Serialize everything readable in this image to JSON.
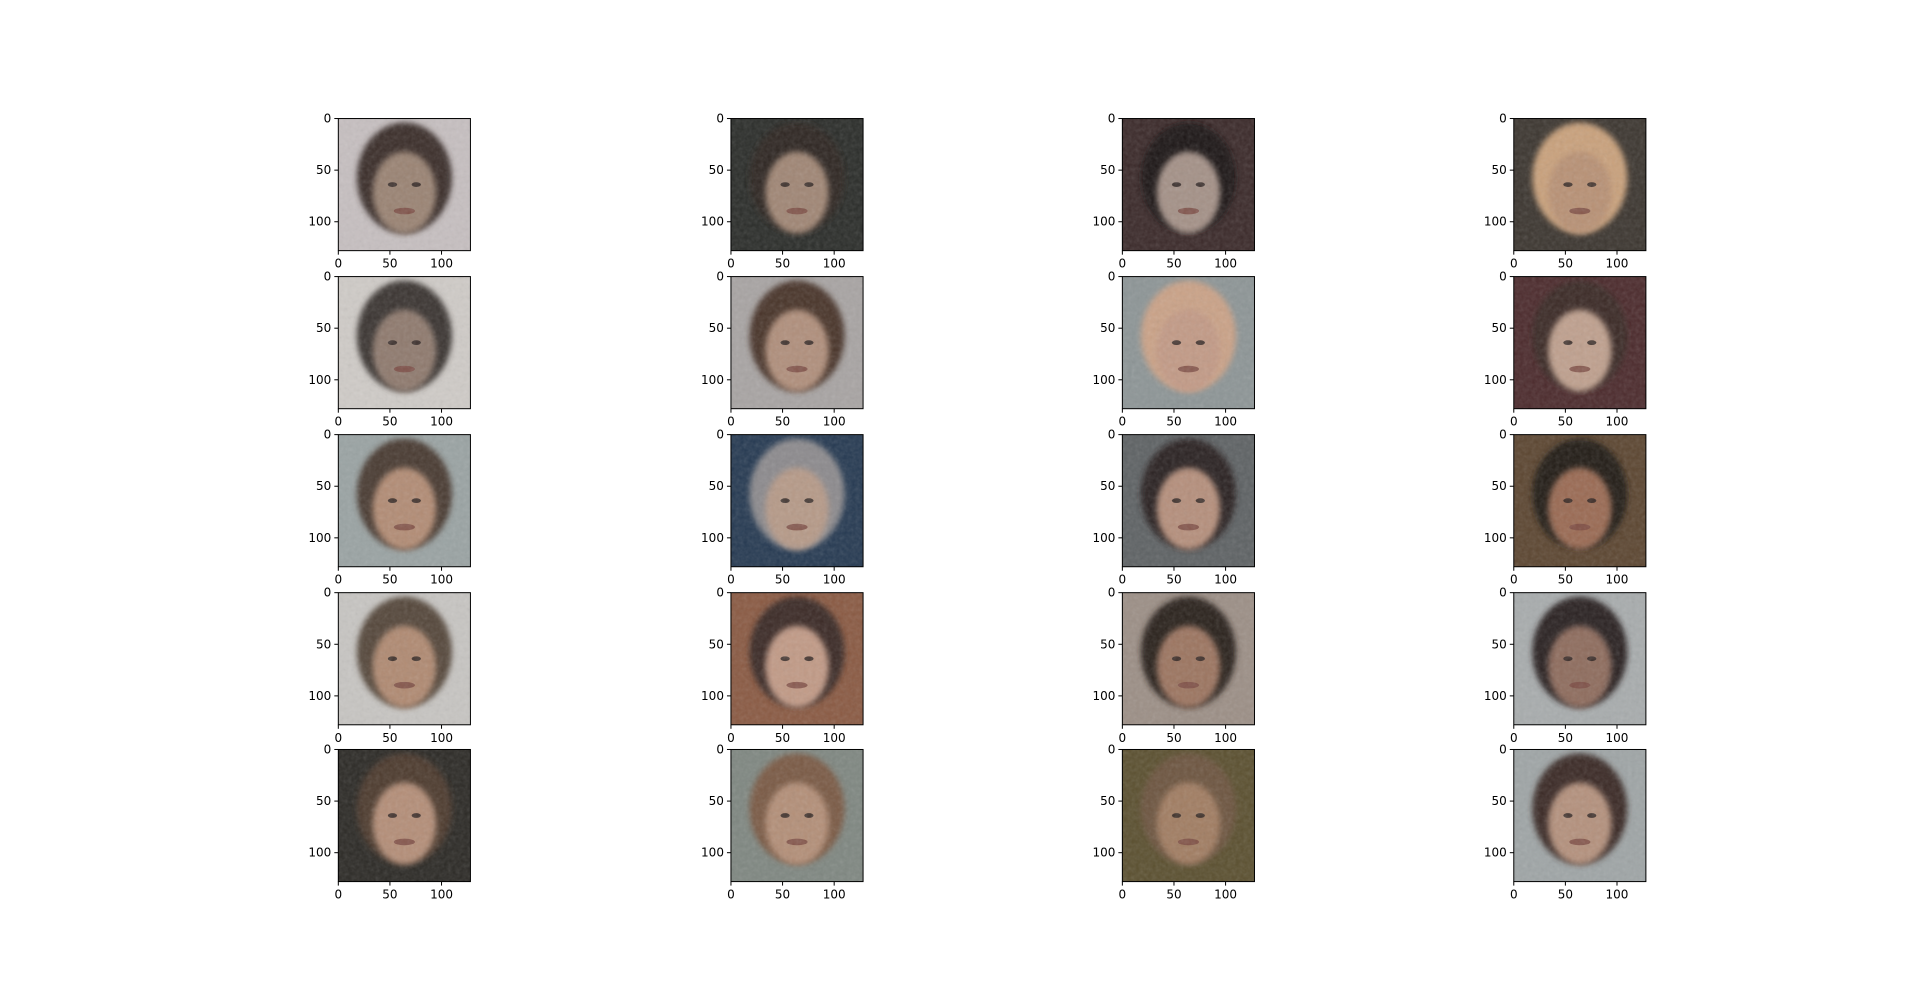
{
  "chart_data": {
    "type": "image-grid",
    "rows": 5,
    "cols": 4,
    "axes": {
      "x_ticks": [
        "0",
        "50",
        "100"
      ],
      "y_ticks": [
        "0",
        "50",
        "100"
      ],
      "x_range": [
        0,
        128
      ],
      "y_range": [
        0,
        128
      ],
      "grid": false
    },
    "panels": [
      {
        "row": 0,
        "col": 0,
        "bg": "#c6bfc0",
        "skin": "#9a8373",
        "hair": "#3a2e2a"
      },
      {
        "row": 0,
        "col": 1,
        "bg": "#2b2d2a",
        "skin": "#a08675",
        "hair": "#2e2622"
      },
      {
        "row": 0,
        "col": 2,
        "bg": "#3b2a2a",
        "skin": "#a49187",
        "hair": "#1f1918"
      },
      {
        "row": 0,
        "col": 3,
        "bg": "#3c3630",
        "skin": "#b89174",
        "hair": "#c9a17c"
      },
      {
        "row": 1,
        "col": 0,
        "bg": "#cfcbc7",
        "skin": "#8f7a6e",
        "hair": "#3b3531"
      },
      {
        "row": 1,
        "col": 1,
        "bg": "#a8a4a3",
        "skin": "#b08f7c",
        "hair": "#4a352c"
      },
      {
        "row": 1,
        "col": 2,
        "bg": "#8d9596",
        "skin": "#c29a86",
        "hair": "#caa287"
      },
      {
        "row": 1,
        "col": 3,
        "bg": "#4c2b2d",
        "skin": "#bfa08e",
        "hair": "#3b2a25"
      },
      {
        "row": 2,
        "col": 0,
        "bg": "#9aa3a3",
        "skin": "#b28c75",
        "hair": "#4a3a30"
      },
      {
        "row": 2,
        "col": 1,
        "bg": "#263a52",
        "skin": "#b69a88",
        "hair": "#8c8a8d"
      },
      {
        "row": 2,
        "col": 2,
        "bg": "#5e6264",
        "skin": "#b58f7c",
        "hair": "#2a2322"
      },
      {
        "row": 2,
        "col": 3,
        "bg": "#5c4631",
        "skin": "#9a6a52",
        "hair": "#221b18"
      },
      {
        "row": 3,
        "col": 0,
        "bg": "#c7c5c2",
        "skin": "#b08a72",
        "hair": "#55463a"
      },
      {
        "row": 3,
        "col": 1,
        "bg": "#8a5a43",
        "skin": "#c19a86",
        "hair": "#3b2a25"
      },
      {
        "row": 3,
        "col": 2,
        "bg": "#9c8f86",
        "skin": "#9c7460",
        "hair": "#2a201d"
      },
      {
        "row": 3,
        "col": 3,
        "bg": "#a8acad",
        "skin": "#8e6c5d",
        "hair": "#2a2322"
      },
      {
        "row": 4,
        "col": 0,
        "bg": "#2c2a26",
        "skin": "#b48e78",
        "hair": "#4e3b2e"
      },
      {
        "row": 4,
        "col": 1,
        "bg": "#7f8781",
        "skin": "#b38f78",
        "hair": "#7a5a44"
      },
      {
        "row": 4,
        "col": 2,
        "bg": "#5b5030",
        "skin": "#a17d62",
        "hair": "#6d5540"
      },
      {
        "row": 4,
        "col": 3,
        "bg": "#9fa5a6",
        "skin": "#b4917d",
        "hair": "#3a2c25"
      }
    ]
  }
}
